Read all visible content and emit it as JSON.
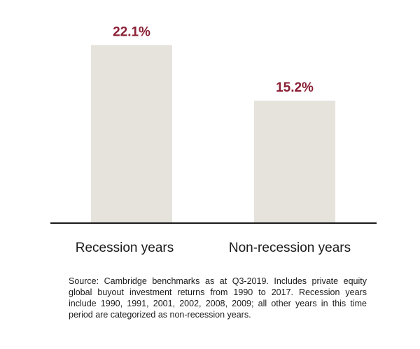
{
  "chart_data": {
    "type": "bar",
    "categories": [
      "Recession years",
      "Non-recession years"
    ],
    "values": [
      22.1,
      15.2
    ],
    "value_labels": [
      "22.1%",
      "15.2%"
    ],
    "title": "",
    "xlabel": "",
    "ylabel": "",
    "ylim": [
      0,
      25
    ],
    "grid": false,
    "legend": "none",
    "bar_color": "#e6e2dc",
    "label_color": "#8b2035",
    "axis_color": "#1a1a1a"
  },
  "footnote": "Source: Cambridge benchmarks as at Q3-2019. Includes private equity global buyout investment returns from 1990 to 2017. Recession years include 1990, 1991, 2001, 2002, 2008, 2009; all other years in this time period are categorized as non-recession years."
}
